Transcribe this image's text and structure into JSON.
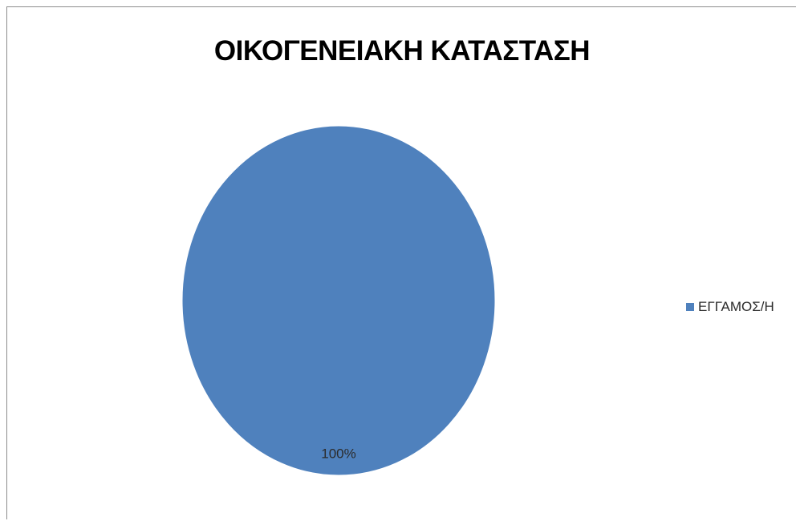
{
  "chart_data": {
    "type": "pie",
    "title": "ΟΙΚΟΓΕΝΕΙΑΚΗ ΚΑΤΑΣΤΑΣΗ",
    "categories": [
      "ΕΓΓΑΜΟΣ/Η"
    ],
    "values": [
      100
    ],
    "data_labels": [
      "100%"
    ],
    "colors": [
      "#4F81BD"
    ],
    "legend_position": "right"
  }
}
